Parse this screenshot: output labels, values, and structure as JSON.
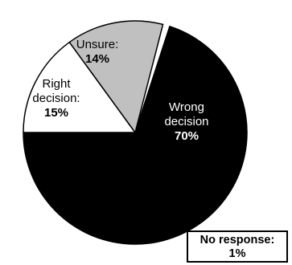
{
  "chart_data": {
    "type": "pie",
    "title": "",
    "slices": [
      {
        "label_lines": [
          "Wrong",
          "decision"
        ],
        "percent_label": "70%",
        "value": 70,
        "color": "#000000",
        "text_color": "#ffffff"
      },
      {
        "label_lines": [
          "Right",
          "decision:"
        ],
        "percent_label": "15%",
        "value": 15,
        "color": "#ffffff",
        "text_color": "#000000"
      },
      {
        "label_lines": [
          "Unsure:"
        ],
        "percent_label": "14%",
        "value": 14,
        "color": "#c0c0c0",
        "text_color": "#000000"
      }
    ],
    "no_response": {
      "label": "No response:",
      "percent_label": "1%",
      "value": 1
    }
  }
}
